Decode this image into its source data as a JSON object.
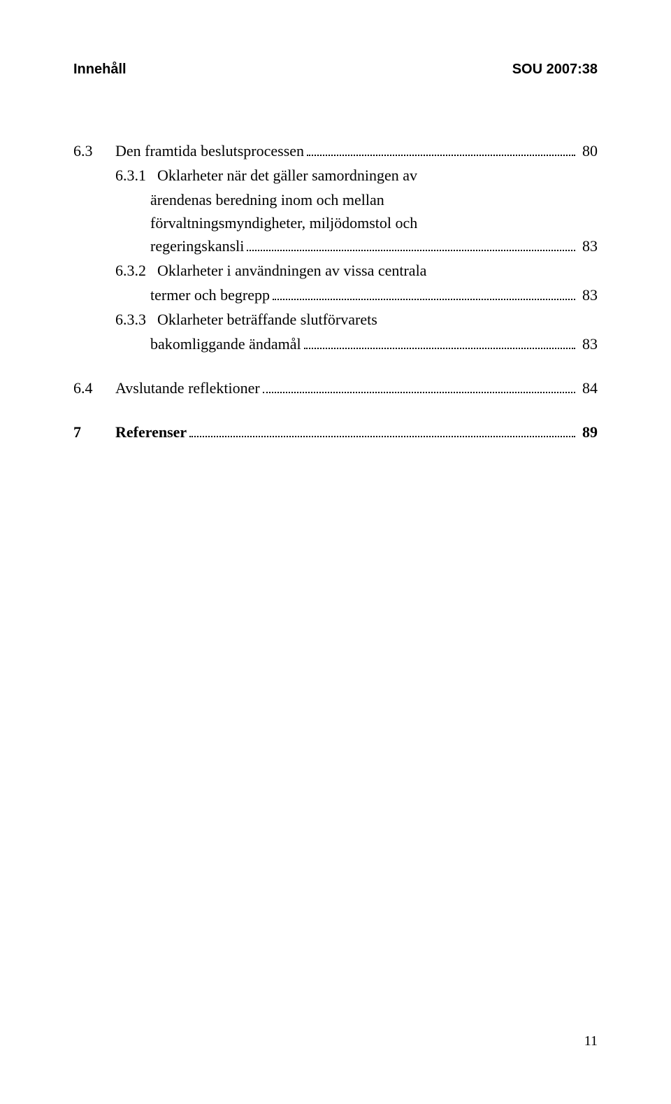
{
  "header": {
    "left": "Innehåll",
    "right": "SOU 2007:38"
  },
  "toc": {
    "s63": {
      "num": "6.3",
      "title": "Den framtida beslutsprocessen",
      "page": "80"
    },
    "s631": {
      "num": "6.3.1",
      "line1": "Oklarheter när det gäller samordningen av",
      "line2": "ärendenas beredning inom och mellan",
      "line3": "förvaltningsmyndigheter, miljödomstol och",
      "line4": "regeringskansli",
      "page": "83"
    },
    "s632": {
      "num": "6.3.2",
      "line1": "Oklarheter i användningen av vissa centrala",
      "line2": "termer och begrepp",
      "page": "83"
    },
    "s633": {
      "num": "6.3.3",
      "line1": "Oklarheter beträffande slutförvarets",
      "line2": "bakomliggande ändamål",
      "page": "83"
    },
    "s64": {
      "num": "6.4",
      "title": "Avslutande reflektioner",
      "page": "84"
    },
    "s7": {
      "num": "7",
      "title": "Referenser",
      "page": "89"
    }
  },
  "footer_page": "11"
}
